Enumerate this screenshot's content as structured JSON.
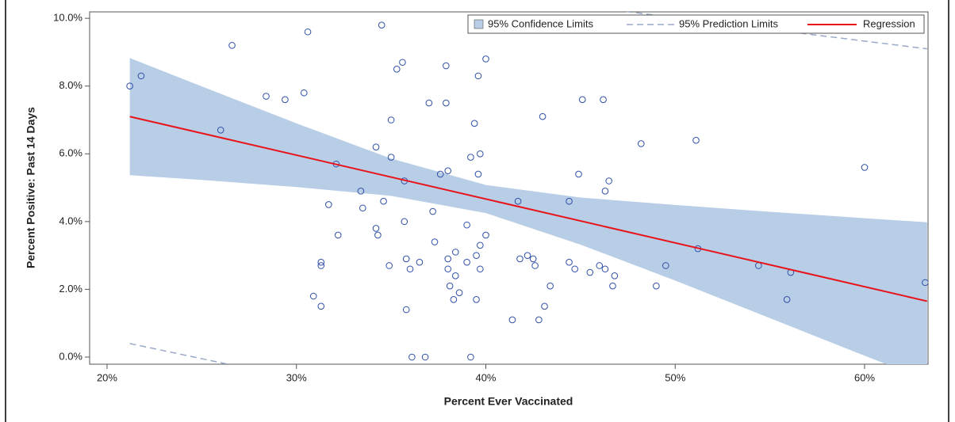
{
  "chart_data": {
    "type": "scatter",
    "x_label": "Percent Ever Vaccinated",
    "y_label": "Percent Positive: Past 14 Days",
    "xlim": [
      19.08,
      63.35
    ],
    "ylim": [
      -0.21,
      10.19
    ],
    "xticks": [
      {
        "value": 20,
        "label": "20%"
      },
      {
        "value": 30,
        "label": "30%"
      },
      {
        "value": 40,
        "label": "40%"
      },
      {
        "value": 50,
        "label": "50%"
      },
      {
        "value": 60,
        "label": "60%"
      }
    ],
    "yticks": [
      {
        "value": 0,
        "label": "0.0%"
      },
      {
        "value": 2,
        "label": "2.0%"
      },
      {
        "value": 4,
        "label": "4.0%"
      },
      {
        "value": 6,
        "label": "6.0%"
      },
      {
        "value": 8,
        "label": "8.0%"
      },
      {
        "value": 10,
        "label": "10.0%"
      }
    ],
    "point_color": "#2f4fa8",
    "x": [
      21.2,
      21.8,
      26.6,
      26.0,
      28.4,
      29.4,
      30.4,
      30.6,
      32.1,
      31.7,
      32.2,
      31.3,
      31.3,
      30.9,
      31.3,
      34.5,
      34.2,
      33.4,
      33.5,
      34.2,
      34.3,
      34.6,
      35.0,
      35.0,
      34.9,
      35.3,
      35.6,
      35.7,
      35.7,
      35.8,
      35.8,
      36.0,
      36.1,
      36.5,
      36.8,
      37.0,
      37.2,
      37.3,
      37.6,
      37.9,
      37.9,
      38.0,
      38.0,
      38.0,
      38.1,
      38.3,
      38.4,
      38.4,
      38.6,
      39.0,
      39.0,
      39.2,
      39.2,
      39.4,
      39.5,
      39.5,
      39.6,
      39.7,
      39.6,
      39.7,
      39.7,
      40.0,
      40.0,
      41.4,
      41.7,
      41.8,
      42.2,
      42.5,
      42.6,
      42.8,
      43.0,
      43.1,
      43.4,
      44.4,
      44.4,
      44.7,
      44.9,
      45.1,
      45.5,
      46.0,
      46.2,
      46.3,
      46.3,
      46.5,
      46.7,
      46.8,
      48.2,
      49.0,
      49.5,
      51.1,
      51.2,
      54.4,
      55.9,
      56.1,
      60.0,
      63.2
    ],
    "values": [
      8.0,
      8.3,
      9.2,
      6.7,
      7.7,
      7.6,
      7.8,
      9.6,
      5.7,
      4.5,
      3.6,
      2.8,
      2.7,
      1.8,
      1.5,
      9.8,
      6.2,
      4.9,
      4.4,
      3.8,
      3.6,
      4.6,
      7.0,
      5.9,
      2.7,
      8.5,
      8.7,
      5.2,
      4.0,
      2.9,
      1.4,
      2.6,
      0.0,
      2.8,
      0.0,
      7.5,
      4.3,
      3.4,
      5.4,
      8.6,
      7.5,
      5.5,
      2.9,
      2.6,
      2.1,
      1.7,
      3.1,
      2.4,
      1.9,
      3.9,
      2.8,
      5.9,
      0.0,
      6.9,
      3.0,
      1.7,
      8.3,
      6.0,
      5.4,
      3.3,
      2.6,
      3.6,
      8.8,
      1.1,
      4.6,
      2.9,
      3.0,
      2.9,
      2.7,
      1.1,
      7.1,
      1.5,
      2.1,
      2.8,
      4.6,
      2.6,
      5.4,
      7.6,
      2.5,
      2.7,
      7.6,
      4.9,
      2.6,
      5.2,
      2.1,
      2.4,
      6.3,
      2.1,
      2.7,
      6.4,
      3.2,
      2.7,
      1.7,
      2.5,
      5.6,
      2.2
    ],
    "confidence_band": {
      "name": "95% Confidence Limits",
      "color": "#b8cde6",
      "x": [
        21.2,
        25,
        30,
        35,
        40,
        45,
        50,
        55,
        60,
        63.3
      ],
      "upper": [
        8.83,
        7.99,
        6.9,
        5.86,
        5.08,
        4.71,
        4.49,
        4.29,
        4.1,
        3.98
      ],
      "lower": [
        5.37,
        5.23,
        5.02,
        4.76,
        4.25,
        3.32,
        2.26,
        1.15,
        0.04,
        -0.68
      ]
    },
    "prediction_limits": {
      "name": "95% Prediction Limits",
      "color": "#9aa9c8",
      "upper": {
        "x": [
          47.4,
          63.3
        ],
        "values": [
          10.2,
          9.1
        ]
      },
      "lower": {
        "x": [
          21.2,
          26.3
        ],
        "values": [
          0.4,
          -0.2
        ]
      }
    },
    "regression": {
      "name": "Regression",
      "color": "#e8141a",
      "x": [
        21.2,
        63.3
      ],
      "values": [
        7.1,
        1.65
      ]
    },
    "grid": false
  }
}
